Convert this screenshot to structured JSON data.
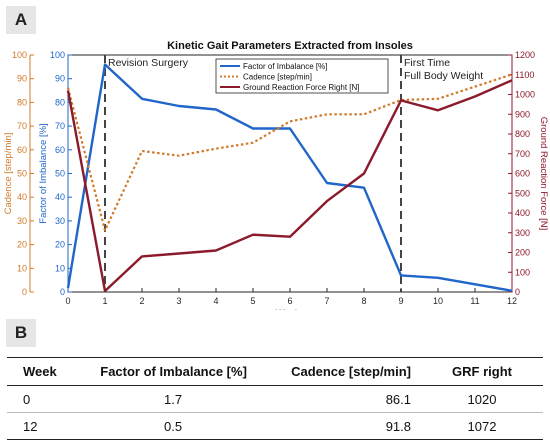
{
  "panel_a_label": "A",
  "panel_b_label": "B",
  "chart_data": {
    "type": "line",
    "title": "Kinetic Gait Parameters Extracted from Insoles",
    "xlabel": "Weeks",
    "xlim": [
      0,
      12
    ],
    "xticks": [
      0,
      1,
      2,
      3,
      4,
      5,
      6,
      7,
      8,
      9,
      10,
      11,
      12
    ],
    "axes": {
      "imbalance": {
        "label": "Factor of Imbalance [%]",
        "ylim": [
          0,
          100
        ],
        "ticks": [
          0,
          10,
          20,
          30,
          40,
          50,
          60,
          70,
          80,
          90,
          100
        ],
        "color": "#2166c9"
      },
      "cadence": {
        "label": "Cadence [step/min]",
        "ylim": [
          0,
          100
        ],
        "ticks": [
          0,
          10,
          20,
          30,
          40,
          50,
          60,
          70,
          80,
          90,
          100
        ],
        "color": "#d07a2a"
      },
      "grf": {
        "label": "Ground Reaction Force [N]",
        "ylim": [
          0,
          1200
        ],
        "ticks": [
          0,
          100,
          200,
          300,
          400,
          500,
          600,
          700,
          800,
          900,
          1000,
          1100,
          1200
        ],
        "color": "#8b1a2b"
      }
    },
    "series": [
      {
        "name": "Factor of Imbalance [%]",
        "axis": "imbalance",
        "style": "solid",
        "x": [
          0,
          1,
          2,
          3,
          4,
          5,
          6,
          7,
          8,
          9,
          10,
          12
        ],
        "y": [
          1.7,
          96,
          81.5,
          78.5,
          77,
          69,
          69,
          46,
          44,
          7,
          6,
          0.5
        ]
      },
      {
        "name": "Cadence [step/min]",
        "axis": "cadence",
        "style": "dotted",
        "x": [
          0,
          1,
          2,
          3,
          4,
          5,
          6,
          7,
          8,
          9,
          10,
          12
        ],
        "y": [
          86.1,
          26,
          59.5,
          57.5,
          60.5,
          63,
          72,
          75,
          75,
          81,
          81.5,
          91.8
        ]
      },
      {
        "name": "Ground Reaction Force Right [N]",
        "axis": "grf",
        "style": "solid",
        "x": [
          0,
          1,
          2,
          3,
          4,
          5,
          6,
          7,
          8,
          9,
          10,
          11,
          12
        ],
        "y": [
          1020,
          5,
          180,
          195,
          210,
          290,
          280,
          460,
          600,
          970,
          920,
          990,
          1072
        ]
      }
    ],
    "annotations": [
      {
        "x": 1,
        "text": "Revision Surgery"
      },
      {
        "x": 9,
        "text": "First Time\nFull Body Weight"
      }
    ],
    "legend_position": "top-center"
  },
  "table": {
    "headers": [
      "Week",
      "Factor of Imbalance [%]",
      "Cadence [step/min]",
      "GRF right"
    ],
    "rows": [
      [
        "0",
        "1.7",
        "86.1",
        "1020"
      ],
      [
        "12",
        "0.5",
        "91.8",
        "1072"
      ]
    ]
  }
}
